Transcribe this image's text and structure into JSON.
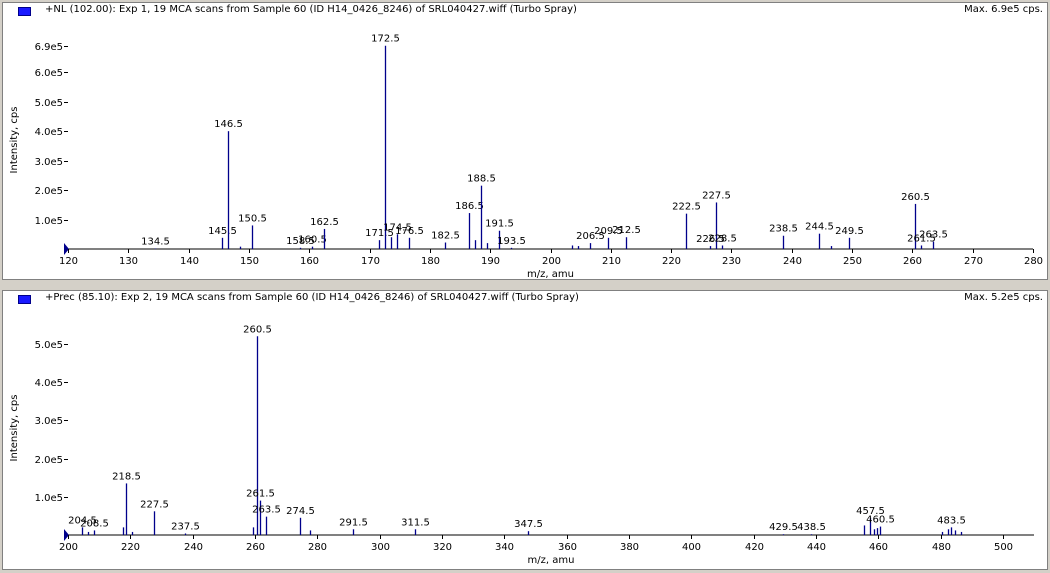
{
  "panes": [
    {
      "header": "+NL (102.00): Exp 1, 19 MCA scans from Sample 60 (ID H14_0426_8246) of SRL040427.wiff (Turbo Spray)",
      "max_label": "Max. 6.9e5 cps.",
      "chart_data": {
        "type": "bar",
        "title": "",
        "xlabel": "m/z, amu",
        "ylabel": "Intensity, cps",
        "xlim": [
          120,
          280
        ],
        "ylim": [
          0,
          740000
        ],
        "xticks": [
          120,
          130,
          140,
          150,
          160,
          170,
          180,
          190,
          200,
          210,
          220,
          230,
          240,
          250,
          260,
          270,
          280
        ],
        "yticks": [
          {
            "value": 100000,
            "label": "1.0e5"
          },
          {
            "value": 200000,
            "label": "2.0e5"
          },
          {
            "value": 300000,
            "label": "3.0e5"
          },
          {
            "value": 400000,
            "label": "4.0e5"
          },
          {
            "value": 500000,
            "label": "5.0e5"
          },
          {
            "value": 600000,
            "label": "6.0e5"
          },
          {
            "value": 690000,
            "label": "6.9e5"
          }
        ],
        "peaks": [
          {
            "x": 134.5,
            "y": 2000,
            "label": "134.5"
          },
          {
            "x": 145.5,
            "y": 38000,
            "label": "145.5"
          },
          {
            "x": 146.5,
            "y": 400000,
            "label": "146.5"
          },
          {
            "x": 148.5,
            "y": 8000,
            "label": ""
          },
          {
            "x": 150.5,
            "y": 80000,
            "label": "150.5"
          },
          {
            "x": 158.5,
            "y": 4000,
            "label": "158.5"
          },
          {
            "x": 160.5,
            "y": 8000,
            "label": "160.5"
          },
          {
            "x": 162.5,
            "y": 68000,
            "label": "162.5"
          },
          {
            "x": 171.5,
            "y": 30000,
            "label": "171.5"
          },
          {
            "x": 172.5,
            "y": 690000,
            "label": "172.5"
          },
          {
            "x": 173.5,
            "y": 40000,
            "label": ""
          },
          {
            "x": 174.5,
            "y": 50000,
            "label": "174.5"
          },
          {
            "x": 176.5,
            "y": 38000,
            "label": "176.5"
          },
          {
            "x": 182.5,
            "y": 22000,
            "label": "182.5"
          },
          {
            "x": 186.5,
            "y": 122000,
            "label": "186.5"
          },
          {
            "x": 187.5,
            "y": 30000,
            "label": ""
          },
          {
            "x": 188.5,
            "y": 215000,
            "label": "188.5"
          },
          {
            "x": 189.5,
            "y": 20000,
            "label": ""
          },
          {
            "x": 191.5,
            "y": 62000,
            "label": "191.5"
          },
          {
            "x": 193.5,
            "y": 4000,
            "label": "193.5"
          },
          {
            "x": 203.5,
            "y": 12000,
            "label": ""
          },
          {
            "x": 204.5,
            "y": 10000,
            "label": ""
          },
          {
            "x": 206.5,
            "y": 20000,
            "label": "206.5"
          },
          {
            "x": 209.5,
            "y": 38000,
            "label": "209.5"
          },
          {
            "x": 212.5,
            "y": 40000,
            "label": "212.5"
          },
          {
            "x": 222.5,
            "y": 120000,
            "label": "222.5"
          },
          {
            "x": 226.5,
            "y": 10000,
            "label": "226.5"
          },
          {
            "x": 227.5,
            "y": 158000,
            "label": "227.5"
          },
          {
            "x": 228.5,
            "y": 12000,
            "label": "228.5"
          },
          {
            "x": 238.5,
            "y": 45000,
            "label": "238.5"
          },
          {
            "x": 244.5,
            "y": 52000,
            "label": "244.5"
          },
          {
            "x": 246.5,
            "y": 10000,
            "label": ""
          },
          {
            "x": 249.5,
            "y": 38000,
            "label": "249.5"
          },
          {
            "x": 260.5,
            "y": 153000,
            "label": "260.5"
          },
          {
            "x": 261.5,
            "y": 12000,
            "label": "261.5"
          },
          {
            "x": 263.5,
            "y": 25000,
            "label": "263.5"
          }
        ]
      }
    },
    {
      "header": "+Prec (85.10): Exp 2, 19 MCA scans from Sample 60 (ID H14_0426_8246) of SRL040427.wiff (Turbo Spray)",
      "max_label": "Max. 5.2e5 cps.",
      "chart_data": {
        "type": "bar",
        "title": "",
        "xlabel": "m/z, amu",
        "ylabel": "Intensity, cps",
        "xlim": [
          200,
          510
        ],
        "ylim": [
          0,
          560000
        ],
        "xticks": [
          200,
          220,
          240,
          260,
          280,
          300,
          320,
          340,
          360,
          380,
          400,
          420,
          440,
          460,
          480,
          500
        ],
        "yticks": [
          {
            "value": 100000,
            "label": "1.0e5"
          },
          {
            "value": 200000,
            "label": "2.0e5"
          },
          {
            "value": 300000,
            "label": "3.0e5"
          },
          {
            "value": 400000,
            "label": "4.0e5"
          },
          {
            "value": 500000,
            "label": "5.0e5"
          }
        ],
        "peaks": [
          {
            "x": 204.5,
            "y": 20000,
            "label": "204.5"
          },
          {
            "x": 206.5,
            "y": 8000,
            "label": ""
          },
          {
            "x": 208.5,
            "y": 12000,
            "label": "208.5"
          },
          {
            "x": 217.5,
            "y": 20000,
            "label": ""
          },
          {
            "x": 218.5,
            "y": 135000,
            "label": "218.5"
          },
          {
            "x": 220.5,
            "y": 8000,
            "label": ""
          },
          {
            "x": 227.5,
            "y": 62000,
            "label": "227.5"
          },
          {
            "x": 237.5,
            "y": 4000,
            "label": "237.5"
          },
          {
            "x": 259.5,
            "y": 20000,
            "label": ""
          },
          {
            "x": 260.5,
            "y": 520000,
            "label": "260.5"
          },
          {
            "x": 261.5,
            "y": 90000,
            "label": "261.5"
          },
          {
            "x": 263.5,
            "y": 48000,
            "label": "263.5"
          },
          {
            "x": 274.5,
            "y": 45000,
            "label": "274.5"
          },
          {
            "x": 277.5,
            "y": 12000,
            "label": ""
          },
          {
            "x": 291.5,
            "y": 15000,
            "label": "291.5"
          },
          {
            "x": 311.5,
            "y": 15000,
            "label": "311.5"
          },
          {
            "x": 347.5,
            "y": 10000,
            "label": "347.5"
          },
          {
            "x": 429.5,
            "y": 2000,
            "label": "429.5"
          },
          {
            "x": 438.5,
            "y": 2000,
            "label": "438.5"
          },
          {
            "x": 455.5,
            "y": 25000,
            "label": ""
          },
          {
            "x": 457.5,
            "y": 45000,
            "label": "457.5"
          },
          {
            "x": 458.5,
            "y": 15000,
            "label": ""
          },
          {
            "x": 459.5,
            "y": 18000,
            "label": ""
          },
          {
            "x": 460.5,
            "y": 22000,
            "label": "460.5"
          },
          {
            "x": 480.5,
            "y": 8000,
            "label": ""
          },
          {
            "x": 482.5,
            "y": 15000,
            "label": ""
          },
          {
            "x": 483.5,
            "y": 20000,
            "label": "483.5"
          },
          {
            "x": 484.5,
            "y": 12000,
            "label": ""
          },
          {
            "x": 486.5,
            "y": 8000,
            "label": ""
          }
        ]
      }
    }
  ],
  "colors": {
    "peak": "#00008b",
    "axis": "#000000",
    "header_marker": "#1a1aff",
    "background": "#ffffff",
    "frame": "#d4d0c8"
  }
}
